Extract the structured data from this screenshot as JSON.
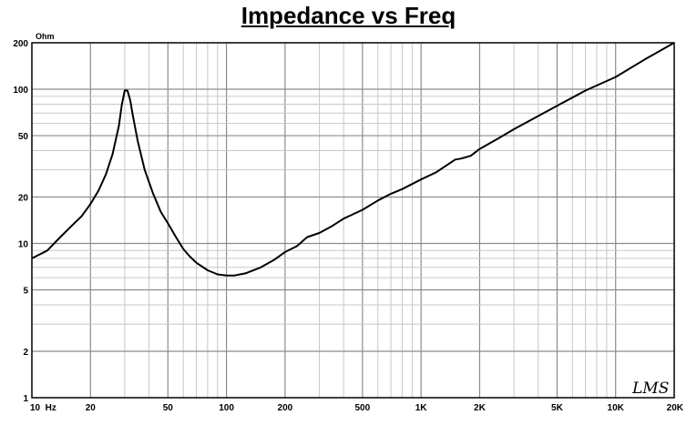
{
  "chart_data": {
    "type": "line",
    "title": "Impedance vs Freq",
    "ylabel": "Ohm",
    "xlabel": "",
    "x_scale": "log",
    "y_scale": "log",
    "xlim": [
      10,
      20000
    ],
    "ylim": [
      1,
      200
    ],
    "grid": true,
    "x_ticks": [
      {
        "value": 10,
        "label": "10  Hz"
      },
      {
        "value": 20,
        "label": "20"
      },
      {
        "value": 50,
        "label": "50"
      },
      {
        "value": 100,
        "label": "100"
      },
      {
        "value": 200,
        "label": "200"
      },
      {
        "value": 500,
        "label": "500"
      },
      {
        "value": 1000,
        "label": "1K"
      },
      {
        "value": 2000,
        "label": "2K"
      },
      {
        "value": 5000,
        "label": "5K"
      },
      {
        "value": 10000,
        "label": "10K"
      },
      {
        "value": 20000,
        "label": "20K"
      }
    ],
    "y_ticks": [
      {
        "value": 1,
        "label": "1"
      },
      {
        "value": 2,
        "label": "2"
      },
      {
        "value": 5,
        "label": "5"
      },
      {
        "value": 10,
        "label": "10"
      },
      {
        "value": 20,
        "label": "20"
      },
      {
        "value": 50,
        "label": "50"
      },
      {
        "value": 100,
        "label": "100"
      },
      {
        "value": 200,
        "label": "200"
      }
    ],
    "series": [
      {
        "color": "#000000",
        "points": [
          [
            10,
            8
          ],
          [
            12,
            9
          ],
          [
            14,
            11
          ],
          [
            16,
            13
          ],
          [
            18,
            15
          ],
          [
            20,
            18
          ],
          [
            22,
            22
          ],
          [
            24,
            28
          ],
          [
            26,
            38
          ],
          [
            28,
            58
          ],
          [
            29,
            80
          ],
          [
            30,
            98
          ],
          [
            31,
            98
          ],
          [
            32,
            85
          ],
          [
            33,
            68
          ],
          [
            35,
            46
          ],
          [
            38,
            30
          ],
          [
            42,
            21
          ],
          [
            46,
            16
          ],
          [
            50,
            13.5
          ],
          [
            55,
            11
          ],
          [
            60,
            9.2
          ],
          [
            65,
            8.2
          ],
          [
            70,
            7.5
          ],
          [
            80,
            6.7
          ],
          [
            90,
            6.3
          ],
          [
            100,
            6.2
          ],
          [
            110,
            6.2
          ],
          [
            125,
            6.4
          ],
          [
            150,
            7.0
          ],
          [
            175,
            7.8
          ],
          [
            200,
            8.8
          ],
          [
            230,
            9.6
          ],
          [
            260,
            11
          ],
          [
            300,
            11.7
          ],
          [
            350,
            13
          ],
          [
            400,
            14.5
          ],
          [
            500,
            16.5
          ],
          [
            600,
            19
          ],
          [
            700,
            21
          ],
          [
            800,
            22.5
          ],
          [
            1000,
            26
          ],
          [
            1200,
            29
          ],
          [
            1400,
            33
          ],
          [
            1500,
            35
          ],
          [
            1600,
            35.5
          ],
          [
            1800,
            37
          ],
          [
            2000,
            41
          ],
          [
            2500,
            48
          ],
          [
            3000,
            55
          ],
          [
            4000,
            67
          ],
          [
            5000,
            78
          ],
          [
            7000,
            98
          ],
          [
            10000,
            120
          ],
          [
            14000,
            155
          ],
          [
            20000,
            200
          ]
        ]
      }
    ]
  },
  "logo": {
    "text": "LMS"
  }
}
